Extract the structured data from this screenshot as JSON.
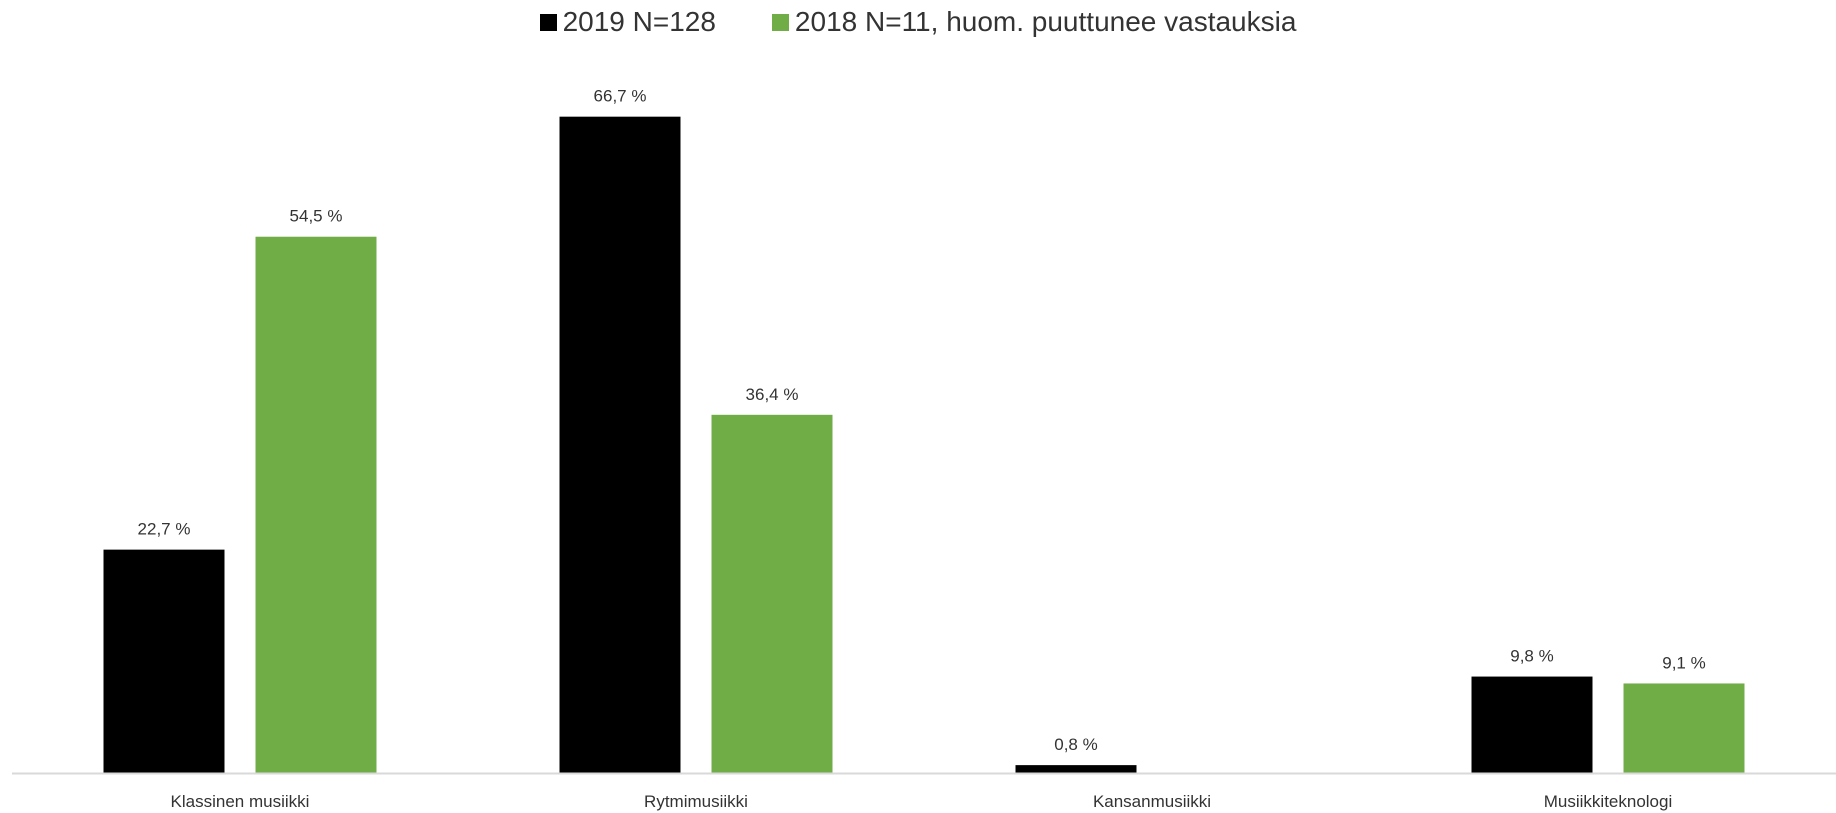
{
  "chart_data": {
    "type": "bar",
    "categories": [
      "Klassinen musiikki",
      "Rytmimusiikki",
      "Kansanmusiikki",
      "Musiikkiteknologi"
    ],
    "series": [
      {
        "name": "2019 N=128",
        "color": "#000000",
        "values": [
          22.7,
          66.7,
          0.8,
          9.8
        ],
        "labels": [
          "22,7 %",
          "66,7 %",
          "0,8 %",
          "9,8 %"
        ]
      },
      {
        "name": "2018 N=11, huom. puuttunee vastauksia",
        "color": "#70ad47",
        "values": [
          54.5,
          36.4,
          null,
          9.1
        ],
        "labels": [
          "54,5 %",
          "36,4 %",
          "",
          "9,1 %"
        ]
      }
    ],
    "title": "",
    "xlabel": "",
    "ylabel": "",
    "ylim": [
      0,
      70
    ],
    "grid": false,
    "legend": "top-center",
    "axis_color": "#d9d9d9",
    "label_color": "#333333"
  }
}
